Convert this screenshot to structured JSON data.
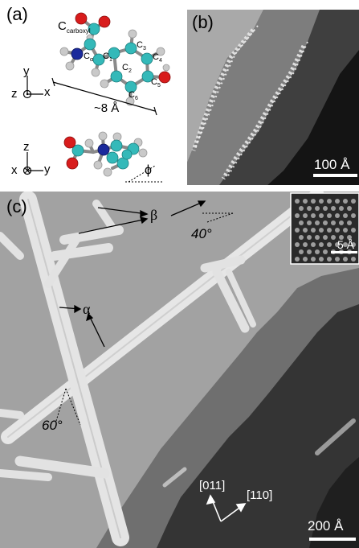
{
  "panel_a": {
    "label": "(a)",
    "atom_labels": {
      "c_carboxyl_main": "C",
      "c_carboxyl_sub": "carboxyl",
      "c_alpha_main": "C",
      "c_alpha_sub": "α",
      "c1_main": "C",
      "c1_sub": "1",
      "c2_main": "C",
      "c2_sub": "2",
      "c3_main": "C",
      "c3_sub": "3",
      "c4_main": "C",
      "c4_sub": "4",
      "c5_main": "C",
      "c5_sub": "5",
      "c6_main": "C",
      "c6_sub": "6"
    },
    "scale_text": "~8 Å",
    "axes_top": {
      "y": "y",
      "z": "z",
      "x": "x"
    },
    "axes_bottom": {
      "z": "z",
      "x": "x",
      "y": "y"
    },
    "angle_symbol": "ϕ"
  },
  "panel_b": {
    "label": "(b)",
    "scale_text": "100 Å"
  },
  "panel_c": {
    "label": "(c)",
    "beta": "β",
    "alpha": "α",
    "angle_40": "40°",
    "angle_60": "60°",
    "inset_scale": "5 Å",
    "dir1": "[01̅1̅]",
    "dir1_text": "[011]",
    "dir2_text": "[110]",
    "scale_text": "200 Å"
  },
  "colors": {
    "carbon": "#34b9b9",
    "oxygen": "#d81c1c",
    "nitrogen": "#1b2a9c",
    "hydrogen": "#c9c9c9",
    "bond": "#8a8a8a"
  }
}
